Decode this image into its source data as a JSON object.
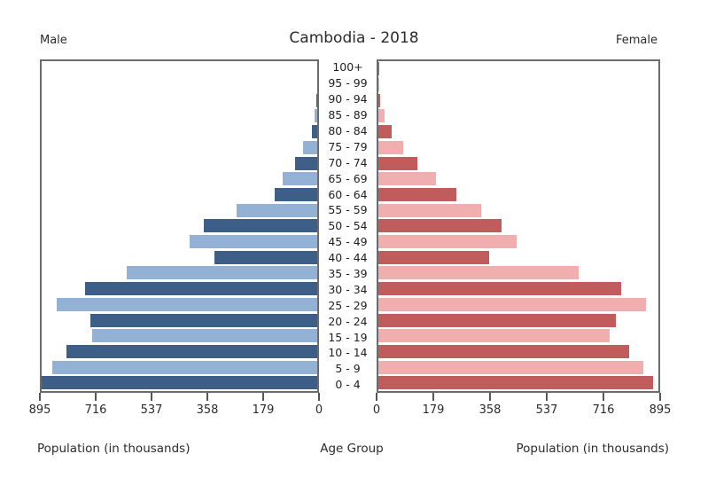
{
  "header": {
    "male_label": "Male",
    "title": "Cambodia - 2018",
    "female_label": "Female"
  },
  "footer": {
    "left_axis_label": "Population (in thousands)",
    "center_axis_label": "Age Group",
    "right_axis_label": "Population (in thousands)"
  },
  "chart_data": {
    "type": "bar",
    "subtype": "population-pyramid",
    "title": "Cambodia - 2018",
    "ylabel": "Age Group",
    "xlabel": "Population (in thousands)",
    "age_groups_top_to_bottom": [
      "100+",
      "95 - 99",
      "90 - 94",
      "85 - 89",
      "80 - 84",
      "75 - 79",
      "70 - 74",
      "65 - 69",
      "60 - 64",
      "55 - 59",
      "50 - 54",
      "45 - 49",
      "40 - 44",
      "35 - 39",
      "30 - 34",
      "25 - 29",
      "20 - 24",
      "15 - 19",
      "10 - 14",
      "5 - 9",
      "0 - 4"
    ],
    "series": [
      {
        "name": "Male",
        "side": "left",
        "values_top_to_bottom": [
          0.4,
          1,
          3,
          9,
          17,
          45,
          71,
          111,
          138,
          262,
          367,
          414,
          333,
          619,
          755,
          845,
          738,
          730,
          815,
          860,
          895
        ]
      },
      {
        "name": "Female",
        "side": "right",
        "values_top_to_bottom": [
          0.7,
          2,
          5,
          21,
          42,
          80,
          124,
          183,
          249,
          329,
          395,
          442,
          354,
          639,
          776,
          855,
          760,
          738,
          801,
          848,
          877
        ]
      }
    ],
    "x_axis": {
      "max": 895,
      "left_ticks": [
        "895",
        "716",
        "537",
        "358",
        "179",
        "0"
      ],
      "right_ticks": [
        "0",
        "179",
        "358",
        "537",
        "716",
        "895"
      ]
    },
    "legend": "none",
    "grid": false,
    "colors": {
      "male_dark": "#3d5e87",
      "male_light": "#93b1d4",
      "female_dark": "#c05c5c",
      "female_light": "#f0aeae",
      "panel_border": "#6b6b6b",
      "text": "#2b2b2b"
    }
  }
}
